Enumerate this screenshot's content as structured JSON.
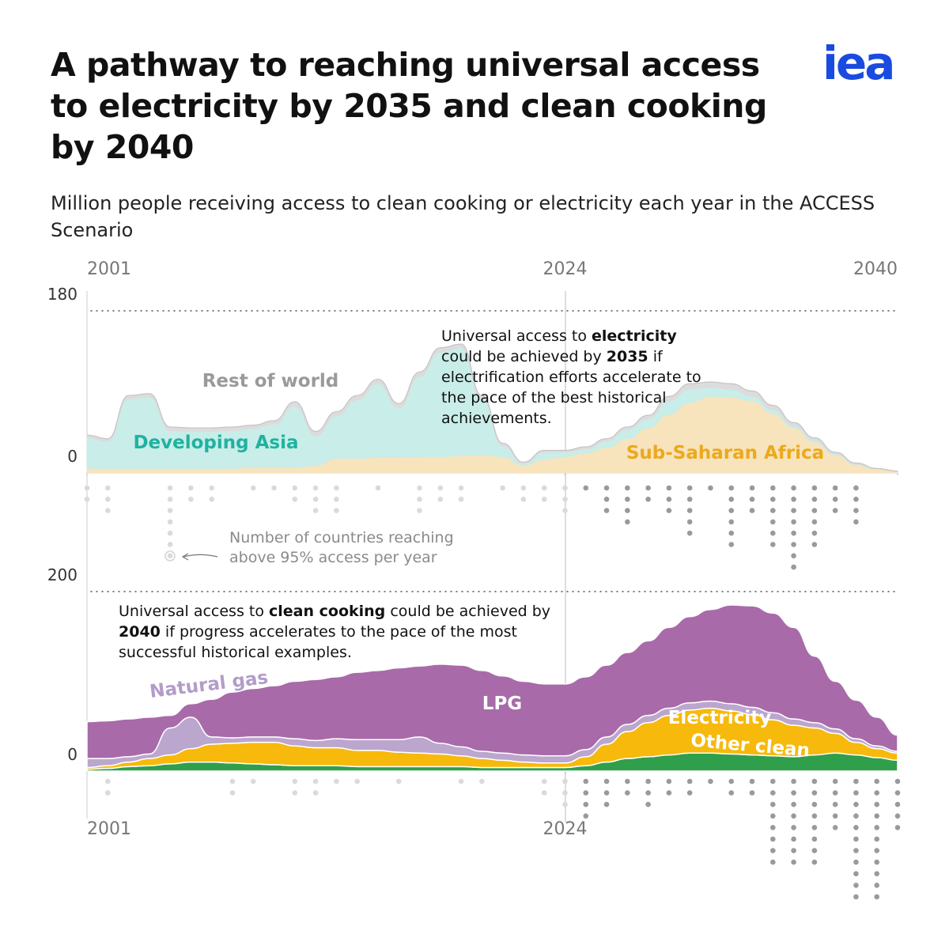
{
  "title": "A pathway to reaching universal access to electricity by 2035 and clean cooking by 2040",
  "subtitle": "Million people receiving access to clean cooking or electricity each year in the ACCESS Scenario",
  "logo": "iea",
  "chart_data": [
    {
      "type": "area",
      "x": [
        2001,
        2002,
        2003,
        2004,
        2005,
        2006,
        2007,
        2008,
        2009,
        2010,
        2011,
        2012,
        2013,
        2014,
        2015,
        2016,
        2017,
        2018,
        2019,
        2020,
        2021,
        2022,
        2023,
        2024,
        2025,
        2026,
        2027,
        2028,
        2029,
        2030,
        2031,
        2032,
        2033,
        2034,
        2035,
        2036,
        2037,
        2038,
        2039,
        2040
      ],
      "xlim": [
        2001,
        2040
      ],
      "xticks": [
        2001,
        2024,
        2040
      ],
      "ylim": [
        0,
        180
      ],
      "yticks": [
        0,
        180
      ],
      "series": [
        {
          "name": "Sub-Saharan Africa",
          "color": "#f7e3bc",
          "label_color": "#eba91c",
          "values": [
            5,
            5,
            5,
            5,
            5,
            5,
            5,
            5,
            6,
            6,
            6,
            8,
            16,
            16,
            17,
            17,
            18,
            18,
            19,
            20,
            18,
            8,
            15,
            18,
            22,
            28,
            38,
            50,
            65,
            78,
            85,
            84,
            80,
            66,
            50,
            34,
            20,
            9,
            4,
            1.5
          ]
        },
        {
          "name": "Developing Asia",
          "color": "#c9ede8",
          "label_color": "#1fb2a2",
          "values": [
            34,
            30,
            77,
            79,
            42,
            41,
            41,
            42,
            43,
            48,
            68,
            33,
            47,
            65,
            82,
            55,
            89,
            116,
            120,
            62,
            12,
            2,
            8,
            5,
            4,
            7,
            10,
            10,
            15,
            15,
            10,
            9,
            5,
            4,
            2,
            2,
            1,
            0.5,
            0.5,
            0.2
          ]
        },
        {
          "name": "Rest of world",
          "color": "#dcdcdc",
          "label_color": "#9a9a9a",
          "values": [
            3,
            3,
            4,
            4,
            4,
            4,
            4,
            4,
            4,
            4,
            5,
            5,
            5,
            5,
            5,
            5,
            5,
            5,
            4,
            4,
            3,
            2,
            2,
            2,
            3,
            3,
            3,
            4,
            5,
            6,
            6,
            6,
            6,
            5,
            4,
            3,
            2,
            1.5,
            0.5,
            0.3
          ]
        }
      ],
      "dots_label": "Number of countries reaching above 95% access per year",
      "country_counts": [
        2,
        3,
        0,
        0,
        7,
        2,
        2,
        0,
        1,
        1,
        2,
        3,
        3,
        0,
        1,
        0,
        3,
        2,
        2,
        0,
        1,
        2,
        2,
        3,
        1,
        3,
        4,
        2,
        3,
        5,
        1,
        6,
        3,
        6,
        8,
        6,
        3,
        4,
        0,
        0
      ],
      "annotation": [
        {
          "text": "Universal access to "
        },
        {
          "text": "electricity",
          "bold": true
        },
        {
          "text": " could be achieved by "
        },
        {
          "text": "2035",
          "bold": true
        },
        {
          "text": " if electrification efforts accelerate to the pace of the best historical achievements."
        }
      ]
    },
    {
      "type": "area",
      "x": [
        2001,
        2002,
        2003,
        2004,
        2005,
        2006,
        2007,
        2008,
        2009,
        2010,
        2011,
        2012,
        2013,
        2014,
        2015,
        2016,
        2017,
        2018,
        2019,
        2020,
        2021,
        2022,
        2023,
        2024,
        2025,
        2026,
        2027,
        2028,
        2029,
        2030,
        2031,
        2032,
        2033,
        2034,
        2035,
        2036,
        2037,
        2038,
        2039,
        2040
      ],
      "xlim": [
        2001,
        2040
      ],
      "xticks": [
        2001,
        2024
      ],
      "ylim": [
        0,
        200
      ],
      "yticks": [
        0,
        200
      ],
      "series": [
        {
          "name": "Other clean",
          "color": "#2f9f4b",
          "label_color": "#ffffff",
          "values": [
            2,
            3,
            5,
            6,
            8,
            10,
            10,
            9,
            8,
            7,
            6,
            6,
            6,
            5,
            5,
            5,
            5,
            5,
            5,
            4,
            4,
            4,
            4,
            4,
            6,
            10,
            14,
            16,
            18,
            20,
            20,
            19,
            18,
            17,
            16,
            18,
            20,
            18,
            15,
            12
          ]
        },
        {
          "name": "Electricity",
          "color": "#f6b90c",
          "label_color": "#ffffff",
          "values": [
            2,
            3,
            5,
            8,
            10,
            15,
            20,
            22,
            24,
            25,
            22,
            20,
            20,
            18,
            18,
            16,
            15,
            14,
            12,
            10,
            8,
            6,
            5,
            5,
            10,
            20,
            30,
            38,
            44,
            48,
            50,
            48,
            45,
            40,
            35,
            30,
            22,
            14,
            10,
            8
          ]
        },
        {
          "name": "Natural gas",
          "color": "#bba6cd",
          "label_color": "#b39cc9",
          "values": [
            10,
            8,
            6,
            5,
            30,
            35,
            8,
            6,
            6,
            6,
            8,
            8,
            10,
            12,
            12,
            14,
            18,
            12,
            10,
            8,
            8,
            8,
            8,
            8,
            8,
            8,
            8,
            8,
            8,
            8,
            8,
            8,
            8,
            8,
            7,
            6,
            5,
            4,
            3,
            2
          ]
        },
        {
          "name": "LPG",
          "color": "#a86aa9",
          "label_color": "#ffffff",
          "values": [
            41,
            42,
            42,
            41,
            14,
            15,
            42,
            51,
            54,
            57,
            64,
            68,
            69,
            75,
            77,
            80,
            79,
            88,
            91,
            90,
            86,
            82,
            80,
            80,
            81,
            80,
            80,
            83,
            90,
            96,
            102,
            110,
            113,
            111,
            102,
            74,
            53,
            43,
            32,
            18
          ]
        }
      ],
      "country_counts": [
        0,
        2,
        0,
        0,
        0,
        0,
        0,
        2,
        1,
        0,
        2,
        2,
        1,
        1,
        0,
        1,
        0,
        0,
        1,
        1,
        0,
        0,
        2,
        3,
        4,
        3,
        2,
        3,
        2,
        2,
        1,
        2,
        2,
        8,
        8,
        8,
        5,
        11,
        11,
        5
      ],
      "annotation": [
        {
          "text": "Universal access to "
        },
        {
          "text": "clean cooking",
          "bold": true
        },
        {
          "text": " could be achieved by "
        },
        {
          "text": "2040",
          "bold": true
        },
        {
          "text": " if progress accelerates to the pace of the most successful historical examples."
        }
      ]
    }
  ]
}
